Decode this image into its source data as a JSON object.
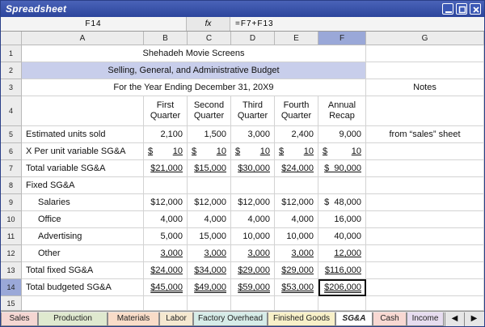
{
  "window": {
    "title": "Spreadsheet"
  },
  "formula_bar": {
    "cell_ref": "F14",
    "fx_label": "fx",
    "formula": "=F7+F13"
  },
  "columns": [
    "A",
    "B",
    "C",
    "D",
    "E",
    "F",
    "G"
  ],
  "active_column": "F",
  "active_row": "14",
  "rows": [
    "1",
    "2",
    "3",
    "4",
    "5",
    "6",
    "7",
    "8",
    "9",
    "10",
    "11",
    "12",
    "13",
    "14",
    "15"
  ],
  "sheet": {
    "r1": {
      "title": "Shehadeh Movie Screens"
    },
    "r2": {
      "title": "Selling, General, and Administrative Budget"
    },
    "r3": {
      "title": "For the Year Ending December 31, 20X9",
      "notes": "Notes"
    },
    "r4": {
      "b1": "First",
      "b2": "Quarter",
      "c1": "Second",
      "c2": "Quarter",
      "d1": "Third",
      "d2": "Quarter",
      "e1": "Fourth",
      "e2": "Quarter",
      "f1": "Annual",
      "f2": "Recap"
    },
    "r5": {
      "a": "Estimated units sold",
      "b": "2,100",
      "c": "1,500",
      "d": "3,000",
      "e": "2,400",
      "f": "9,000",
      "g": "from “sales” sheet"
    },
    "r6": {
      "a": "X Per unit variable SG&A",
      "cur": "$",
      "b": "10",
      "c": "10",
      "d": "10",
      "e": "10",
      "f": "10"
    },
    "r7": {
      "a": "Total variable SG&A",
      "b": "$21,000",
      "c": "$15,000",
      "d": "$30,000",
      "e": "$24,000",
      "f": "$  90,000"
    },
    "r8": {
      "a": "Fixed SG&A"
    },
    "r9": {
      "a": "Salaries",
      "b": "$12,000",
      "c": "$12,000",
      "d": "$12,000",
      "e": "$12,000",
      "f": "$  48,000"
    },
    "r10": {
      "a": "Office",
      "b": "4,000",
      "c": "4,000",
      "d": "4,000",
      "e": "4,000",
      "f": "16,000"
    },
    "r11": {
      "a": "Advertising",
      "b": "5,000",
      "c": "15,000",
      "d": "10,000",
      "e": "10,000",
      "f": "40,000"
    },
    "r12": {
      "a": "Other",
      "b": "3,000",
      "c": "3,000",
      "d": "3,000",
      "e": "3,000",
      "f": "12,000"
    },
    "r13": {
      "a": "Total fixed SG&A",
      "b": "$24,000",
      "c": "$34,000",
      "d": "$29,000",
      "e": "$29,000",
      "f": "$116,000"
    },
    "r14": {
      "a": "Total budgeted SG&A",
      "b": "$45,000",
      "c": "$49,000",
      "d": "$59,000",
      "e": "$53,000",
      "f": "$206,000"
    }
  },
  "tabs": [
    {
      "label": "Sales",
      "color": "#f4d6d2"
    },
    {
      "label": "Production",
      "color": "#dfe9cf"
    },
    {
      "label": "Materials",
      "color": "#f9dcc8"
    },
    {
      "label": "Labor",
      "color": "#f5e8d0"
    },
    {
      "label": "Factory Overhead",
      "color": "#d6ece8"
    },
    {
      "label": "Finished Goods",
      "color": "#f8f0c8"
    },
    {
      "label": "SG&A",
      "color": "#ffffff"
    },
    {
      "label": "Cash",
      "color": "#f8d8d2"
    },
    {
      "label": "Income",
      "color": "#e6dcef"
    }
  ],
  "nav": {
    "prev": "◀",
    "next": "▶"
  }
}
